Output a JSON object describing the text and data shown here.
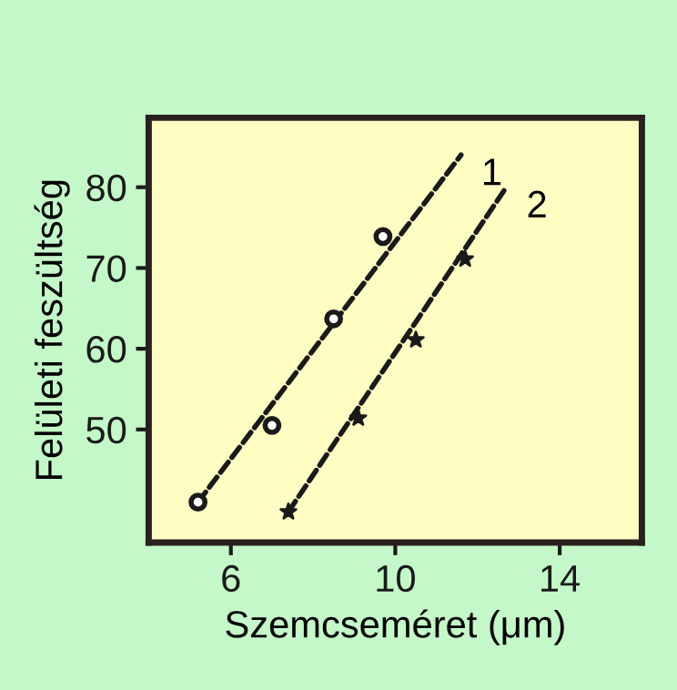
{
  "chart_data": {
    "type": "scatter",
    "xlabel": "Szemcseméret (μm)",
    "ylabel": "Felületi feszültség",
    "xlim": [
      4,
      16
    ],
    "ylim": [
      36,
      88.6
    ],
    "xticks": [
      6,
      10,
      14
    ],
    "yticks": [
      50,
      60,
      70,
      80
    ],
    "grid": false,
    "series": [
      {
        "marker": "circle",
        "color": "#1a1a1a",
        "x": [
          5.2,
          7.0,
          8.5,
          9.7
        ],
        "values": [
          41.0,
          50.5,
          63.7,
          73.9
        ]
      },
      {
        "marker": "star",
        "color": "#1a1a1a",
        "x": [
          7.4,
          9.1,
          10.5,
          11.7
        ],
        "values": [
          39.8,
          51.4,
          61.1,
          71.1
        ]
      },
      {
        "type": "line",
        "name": "1",
        "marker": "none",
        "line_style": "dashed",
        "color": "#1a1a1a",
        "x": [
          5.2,
          11.6
        ],
        "values": [
          41.0,
          84.0
        ]
      },
      {
        "type": "line",
        "name": "2",
        "marker": "none",
        "line_style": "dashed",
        "color": "#1a1a1a",
        "x": [
          7.4,
          12.7
        ],
        "values": [
          39.8,
          80.0
        ]
      }
    ]
  }
}
